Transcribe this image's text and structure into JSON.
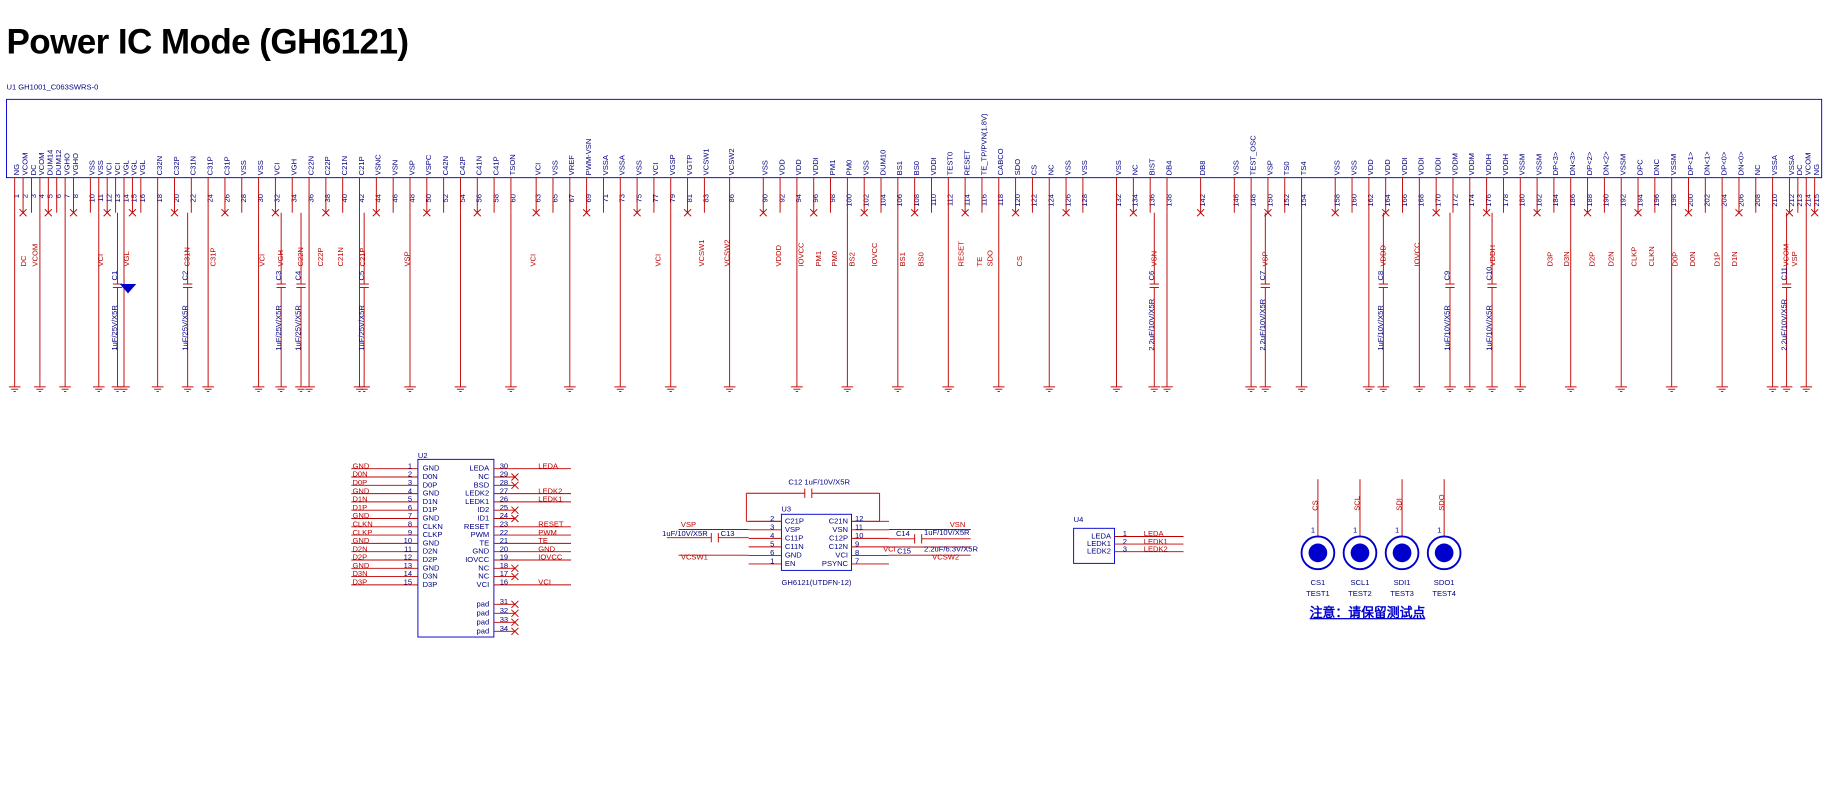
{
  "header": {
    "title": "Power IC Mode (GH6121)",
    "u1_label": "U1   GH1001_C063SWRS-0"
  },
  "u1_pins": [
    {
      "num": "1",
      "name": "NG"
    },
    {
      "num": "2",
      "name": "VCOM"
    },
    {
      "num": "3",
      "name": "DC"
    },
    {
      "num": "4",
      "name": "VCOM"
    },
    {
      "num": "5",
      "name": "DUM14"
    },
    {
      "num": "6",
      "name": "DUM12"
    },
    {
      "num": "7",
      "name": "VGHO"
    },
    {
      "num": "8",
      "name": "VGHO"
    },
    {
      "num": "10",
      "name": "VSS"
    },
    {
      "num": "11",
      "name": "VSS"
    },
    {
      "num": "12",
      "name": "VCI"
    },
    {
      "num": "13",
      "name": "VCI"
    },
    {
      "num": "14",
      "name": "VGL"
    },
    {
      "num": "15",
      "name": "VGL"
    },
    {
      "num": "16",
      "name": "VGL"
    },
    {
      "num": "18",
      "name": "C32N"
    },
    {
      "num": "20",
      "name": "C32P"
    },
    {
      "num": "22",
      "name": "C31N"
    },
    {
      "num": "24",
      "name": "C31P"
    },
    {
      "num": "26",
      "name": "C31P"
    },
    {
      "num": "28",
      "name": "VSS"
    },
    {
      "num": "30",
      "name": "VSS"
    },
    {
      "num": "32",
      "name": "VCI"
    },
    {
      "num": "34",
      "name": "VGH"
    },
    {
      "num": "36",
      "name": "C22N"
    },
    {
      "num": "38",
      "name": "C22P"
    },
    {
      "num": "40",
      "name": "C21N"
    },
    {
      "num": "42",
      "name": "C21P"
    },
    {
      "num": "44",
      "name": "VSNC"
    },
    {
      "num": "46",
      "name": "VSN"
    },
    {
      "num": "48",
      "name": "VSP"
    },
    {
      "num": "50",
      "name": "VSPC"
    },
    {
      "num": "52",
      "name": "C42N"
    },
    {
      "num": "54",
      "name": "C42P"
    },
    {
      "num": "56",
      "name": "C41N"
    },
    {
      "num": "58",
      "name": "C41P"
    },
    {
      "num": "60",
      "name": "TSON"
    },
    {
      "num": "63",
      "name": "VCI"
    },
    {
      "num": "65",
      "name": "VSS"
    },
    {
      "num": "67",
      "name": "VREF"
    },
    {
      "num": "69",
      "name": "PWM-VSN"
    },
    {
      "num": "71",
      "name": "VSSA"
    },
    {
      "num": "73",
      "name": "VSSA"
    },
    {
      "num": "75",
      "name": "VSS"
    },
    {
      "num": "77",
      "name": "VCI"
    },
    {
      "num": "79",
      "name": "VGSP"
    },
    {
      "num": "81",
      "name": "VGTP"
    },
    {
      "num": "83",
      "name": "VCSW1"
    },
    {
      "num": "86",
      "name": "VCSW2"
    },
    {
      "num": "90",
      "name": "VSS"
    },
    {
      "num": "92",
      "name": "VDD"
    },
    {
      "num": "94",
      "name": "VDD"
    },
    {
      "num": "96",
      "name": "VDDI"
    },
    {
      "num": "98",
      "name": "PM1"
    },
    {
      "num": "100",
      "name": "PM0"
    },
    {
      "num": "102",
      "name": "VSS"
    },
    {
      "num": "104",
      "name": "DUM10"
    },
    {
      "num": "106",
      "name": "BS1"
    },
    {
      "num": "108",
      "name": "BS0"
    },
    {
      "num": "110",
      "name": "VDDI"
    },
    {
      "num": "112",
      "name": "TEST0"
    },
    {
      "num": "114",
      "name": "RESET"
    },
    {
      "num": "116",
      "name": "TE_TP/PVN(1.8V)"
    },
    {
      "num": "118",
      "name": "CABCO"
    },
    {
      "num": "120",
      "name": "SDO"
    },
    {
      "num": "122",
      "name": "CS"
    },
    {
      "num": "124",
      "name": "NC"
    },
    {
      "num": "126",
      "name": "VSS"
    },
    {
      "num": "128",
      "name": "VSS"
    },
    {
      "num": "132",
      "name": "VSS"
    },
    {
      "num": "134",
      "name": "NC"
    },
    {
      "num": "136",
      "name": "BIST"
    },
    {
      "num": "138",
      "name": "DB4"
    },
    {
      "num": "142",
      "name": "DB8"
    },
    {
      "num": "146",
      "name": "VSS"
    },
    {
      "num": "148",
      "name": "TEST_OSC"
    },
    {
      "num": "150",
      "name": "VSP"
    },
    {
      "num": "152",
      "name": "TS0"
    },
    {
      "num": "154",
      "name": "TS4"
    },
    {
      "num": "158",
      "name": "VSS"
    },
    {
      "num": "160",
      "name": "VSS"
    },
    {
      "num": "162",
      "name": "VDD"
    },
    {
      "num": "164",
      "name": "VDD"
    },
    {
      "num": "166",
      "name": "VDDI"
    },
    {
      "num": "168",
      "name": "VDDI"
    },
    {
      "num": "170",
      "name": "VDDI"
    },
    {
      "num": "172",
      "name": "VDDM"
    },
    {
      "num": "174",
      "name": "VDDM"
    },
    {
      "num": "176",
      "name": "VDDH"
    },
    {
      "num": "178",
      "name": "VDDH"
    },
    {
      "num": "180",
      "name": "VSSM"
    },
    {
      "num": "182",
      "name": "VSSM"
    },
    {
      "num": "184",
      "name": "DP<3>"
    },
    {
      "num": "186",
      "name": "DN<3>"
    },
    {
      "num": "188",
      "name": "DP<2>"
    },
    {
      "num": "190",
      "name": "DN<2>"
    },
    {
      "num": "192",
      "name": "VSSM"
    },
    {
      "num": "194",
      "name": "DPC"
    },
    {
      "num": "196",
      "name": "DNC"
    },
    {
      "num": "198",
      "name": "VSSM"
    },
    {
      "num": "200",
      "name": "DP<1>"
    },
    {
      "num": "202",
      "name": "DN<1>"
    },
    {
      "num": "204",
      "name": "DP<0>"
    },
    {
      "num": "206",
      "name": "DN<0>"
    },
    {
      "num": "208",
      "name": "NC"
    },
    {
      "num": "210",
      "name": "VSSA"
    },
    {
      "num": "212",
      "name": "VSSA"
    },
    {
      "num": "213",
      "name": "DC"
    },
    {
      "num": "214",
      "name": "VCOM"
    },
    {
      "num": "215",
      "name": "NG"
    }
  ],
  "u1_nets": [
    "DC",
    "VCOM",
    "VCI",
    "VGL",
    "C31N",
    "C31P",
    "VCI",
    "VGH",
    "C22N",
    "C22P",
    "C21N",
    "C21P",
    "VSP",
    "VCI",
    "VCI",
    "VCSW1",
    "VCSW2",
    "VDDD",
    "IOVCC",
    "PM1",
    "PM0",
    "BS2",
    "IOVCC",
    "BS1",
    "BS0",
    "RESET",
    "TE",
    "SDO",
    "CS",
    "VSN",
    "VSP",
    "VDDD",
    "IOVCC",
    "VDDH",
    "D3P",
    "D3N",
    "D2P",
    "D2N",
    "CLKP",
    "CLKN",
    "D0P",
    "D0N",
    "D1P",
    "D1N",
    "VCOM",
    "VSP"
  ],
  "u1_caps": [
    {
      "ref": "C1",
      "value": "1uF/25V/X5R"
    },
    {
      "ref": "C2",
      "value": "1uF/25V/X5R"
    },
    {
      "ref": "C3",
      "value": "1uF/25V/X5R"
    },
    {
      "ref": "C4",
      "value": "1uF/25V/X5R"
    },
    {
      "ref": "C5",
      "value": "1uF/25V/X5R"
    },
    {
      "ref": "C6",
      "value": "2.2uF/10V/X5R"
    },
    {
      "ref": "C7",
      "value": "2.2uF/10V/X5R"
    },
    {
      "ref": "C8",
      "value": "1uF/10V/X5R"
    },
    {
      "ref": "C9",
      "value": "1uF/10V/X5R"
    },
    {
      "ref": "C10",
      "value": "1uF/10V/X5R"
    },
    {
      "ref": "C11",
      "value": "2.2uF/10V/X5R"
    }
  ],
  "u2": {
    "ref": "U2",
    "left": [
      {
        "num": "1",
        "name": "GND",
        "net": "GND"
      },
      {
        "num": "2",
        "name": "D0N",
        "net": "D0N"
      },
      {
        "num": "3",
        "name": "D0P",
        "net": "D0P"
      },
      {
        "num": "4",
        "name": "GND",
        "net": "GND"
      },
      {
        "num": "5",
        "name": "D1N",
        "net": "D1N"
      },
      {
        "num": "6",
        "name": "D1P",
        "net": "D1P"
      },
      {
        "num": "7",
        "name": "GND",
        "net": "GND"
      },
      {
        "num": "8",
        "name": "CLKN",
        "net": "CLKN"
      },
      {
        "num": "9",
        "name": "CLKP",
        "net": "CLKP"
      },
      {
        "num": "10",
        "name": "GND",
        "net": "GND"
      },
      {
        "num": "11",
        "name": "D2N",
        "net": "D2N"
      },
      {
        "num": "12",
        "name": "D2P",
        "net": "D2P"
      },
      {
        "num": "13",
        "name": "GND",
        "net": "GND"
      },
      {
        "num": "14",
        "name": "D3N",
        "net": "D3N"
      },
      {
        "num": "15",
        "name": "D3P",
        "net": "D3P"
      }
    ],
    "right": [
      {
        "num": "30",
        "name": "LEDA",
        "net": "LEDA"
      },
      {
        "num": "29",
        "name": "NC"
      },
      {
        "num": "28",
        "name": "BSD"
      },
      {
        "num": "27",
        "name": "LEDK2",
        "net": "LEDK2"
      },
      {
        "num": "26",
        "name": "LEDK1",
        "net": "LEDK1"
      },
      {
        "num": "25",
        "name": "ID2"
      },
      {
        "num": "24",
        "name": "ID1"
      },
      {
        "num": "23",
        "name": "RESET",
        "net": "RESET"
      },
      {
        "num": "22",
        "name": "PWM",
        "net": "PWM"
      },
      {
        "num": "21",
        "name": "TE",
        "net": "TE"
      },
      {
        "num": "20",
        "name": "GND",
        "net": "GND"
      },
      {
        "num": "19",
        "name": "IOVCC",
        "net": "IOVCC"
      },
      {
        "num": "18",
        "name": "NC"
      },
      {
        "num": "17",
        "name": "NC"
      },
      {
        "num": "16",
        "name": "VCI",
        "net": "VCI"
      }
    ],
    "pads": [
      {
        "num": "31",
        "name": "pad"
      },
      {
        "num": "32",
        "name": "pad"
      },
      {
        "num": "33",
        "name": "pad"
      },
      {
        "num": "34",
        "name": "pad"
      }
    ]
  },
  "u3": {
    "ref": "U3",
    "part": "GH6121(UTDFN-12)",
    "c12": "C12 1uF/10V/X5R",
    "left": [
      {
        "num": "2",
        "name": "C21P"
      },
      {
        "num": "3",
        "name": "VSP"
      },
      {
        "num": "4",
        "name": "C11P"
      },
      {
        "num": "5",
        "name": "C11N"
      },
      {
        "num": "6",
        "name": "GND"
      },
      {
        "num": "1",
        "name": "EN"
      }
    ],
    "right": [
      {
        "num": "12",
        "name": "C21N"
      },
      {
        "num": "11",
        "name": "VSN"
      },
      {
        "num": "10",
        "name": "C12P"
      },
      {
        "num": "9",
        "name": "C12N"
      },
      {
        "num": "8",
        "name": "VCI"
      },
      {
        "num": "7",
        "name": "PSYNC"
      }
    ],
    "net_vsp": "VSP",
    "net_vcsw1": "VCSW1",
    "c13": "C13",
    "c13_value": "1uF/10V/X5R",
    "net_vsn": "VSN",
    "c14": "C14",
    "c14_value": "1uF/10V/X5R",
    "net_vci": "VCI",
    "c15": "C15",
    "c15_value": "2.2uF/6.3V/X5R",
    "net_vcsw2": "VCSW2"
  },
  "u4": {
    "ref": "U4",
    "pins": [
      {
        "num": "1",
        "name": "LEDA",
        "net": "LEDA"
      },
      {
        "num": "2",
        "name": "LEDK1",
        "net": "LEDK1"
      },
      {
        "num": "3",
        "name": "LEDK2",
        "net": "LEDK2"
      }
    ]
  },
  "testpoints": [
    {
      "net": "CS",
      "ref": "CS1",
      "part": "TEST1"
    },
    {
      "net": "SCL",
      "ref": "SCL1",
      "part": "TEST2"
    },
    {
      "net": "SDI",
      "ref": "SDI1",
      "part": "TEST3"
    },
    {
      "net": "SDO",
      "ref": "SDO1",
      "part": "TEST4"
    }
  ],
  "tp_pin": "1",
  "note": "注意：请保留测试点"
}
